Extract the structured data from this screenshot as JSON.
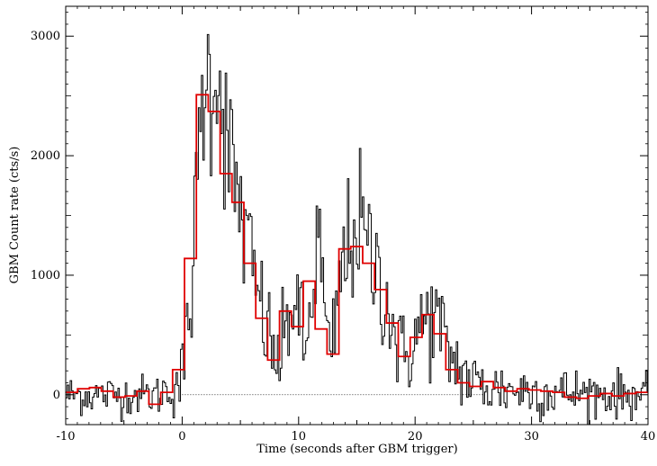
{
  "chart_data": {
    "type": "line",
    "xlabel": "Time (seconds after GBM trigger)",
    "ylabel": "GBM Count rate (cts/s)",
    "xlim": [
      -10,
      40
    ],
    "ylim": [
      -250,
      3250
    ],
    "x_ticks": [
      -10,
      0,
      10,
      20,
      30,
      40
    ],
    "y_ticks": [
      0,
      1000,
      2000,
      3000
    ],
    "baseline": 0,
    "grid": false,
    "legend": "none",
    "series": [
      {
        "style": "histogram-fine",
        "color": "#000000",
        "bin_width": 0.128,
        "x_start": -10,
        "x_end": 40,
        "noise_sigma": 85,
        "envelope_points": [
          [
            -10,
            0
          ],
          [
            -2.0,
            0
          ],
          [
            -1.0,
            60
          ],
          [
            0,
            150
          ],
          [
            0.5,
            500
          ],
          [
            1.0,
            1200
          ],
          [
            1.6,
            2300
          ],
          [
            2.0,
            2750
          ],
          [
            2.3,
            2550
          ],
          [
            2.9,
            2800
          ],
          [
            3.6,
            2350
          ],
          [
            4.2,
            1900
          ],
          [
            4.8,
            1650
          ],
          [
            5.5,
            1300
          ],
          [
            6.3,
            900
          ],
          [
            7.0,
            650
          ],
          [
            7.8,
            350
          ],
          [
            8.3,
            280
          ],
          [
            8.8,
            450
          ],
          [
            9.5,
            850
          ],
          [
            10.0,
            650
          ],
          [
            10.6,
            300
          ],
          [
            11.2,
            900
          ],
          [
            11.7,
            1350
          ],
          [
            12.2,
            750
          ],
          [
            12.7,
            200
          ],
          [
            13.2,
            650
          ],
          [
            13.7,
            1050
          ],
          [
            14.3,
            1250
          ],
          [
            15.0,
            1450
          ],
          [
            15.7,
            1300
          ],
          [
            16.3,
            1100
          ],
          [
            17.0,
            1000
          ],
          [
            17.7,
            750
          ],
          [
            18.4,
            450
          ],
          [
            19.0,
            300
          ],
          [
            19.6,
            400
          ],
          [
            20.2,
            500
          ],
          [
            20.8,
            600
          ],
          [
            21.4,
            650
          ],
          [
            22.0,
            600
          ],
          [
            22.6,
            400
          ],
          [
            23.2,
            300
          ],
          [
            24.0,
            200
          ],
          [
            25.0,
            100
          ],
          [
            26.0,
            60
          ],
          [
            30.0,
            30
          ],
          [
            35.0,
            10
          ],
          [
            40,
            0
          ]
        ]
      },
      {
        "style": "histogram-coarse",
        "color": "#e00000",
        "edges": [
          -10,
          -8.98,
          -7.96,
          -6.94,
          -5.92,
          -4.9,
          -3.88,
          -2.86,
          -1.84,
          -0.82,
          0.2,
          1.22,
          2.24,
          3.26,
          4.28,
          5.3,
          6.32,
          7.34,
          8.36,
          9.38,
          10.4,
          11.42,
          12.44,
          13.46,
          14.48,
          15.5,
          16.52,
          17.54,
          18.56,
          19.58,
          20.6,
          21.62,
          22.64,
          23.66,
          24.68,
          25.7,
          26.72,
          27.74,
          28.76,
          29.78,
          30.8,
          31.82,
          32.84,
          33.86,
          34.88,
          35.9,
          36.92,
          37.94,
          38.96,
          40
        ],
        "values": [
          20,
          50,
          60,
          30,
          -20,
          -10,
          30,
          -80,
          20,
          210,
          1140,
          2510,
          2370,
          1850,
          1610,
          1100,
          640,
          290,
          700,
          570,
          950,
          550,
          340,
          1220,
          1240,
          1100,
          880,
          600,
          320,
          480,
          670,
          510,
          210,
          100,
          70,
          110,
          60,
          30,
          50,
          40,
          30,
          20,
          -20,
          -30,
          -10,
          10,
          -10,
          10,
          20
        ]
      }
    ]
  }
}
